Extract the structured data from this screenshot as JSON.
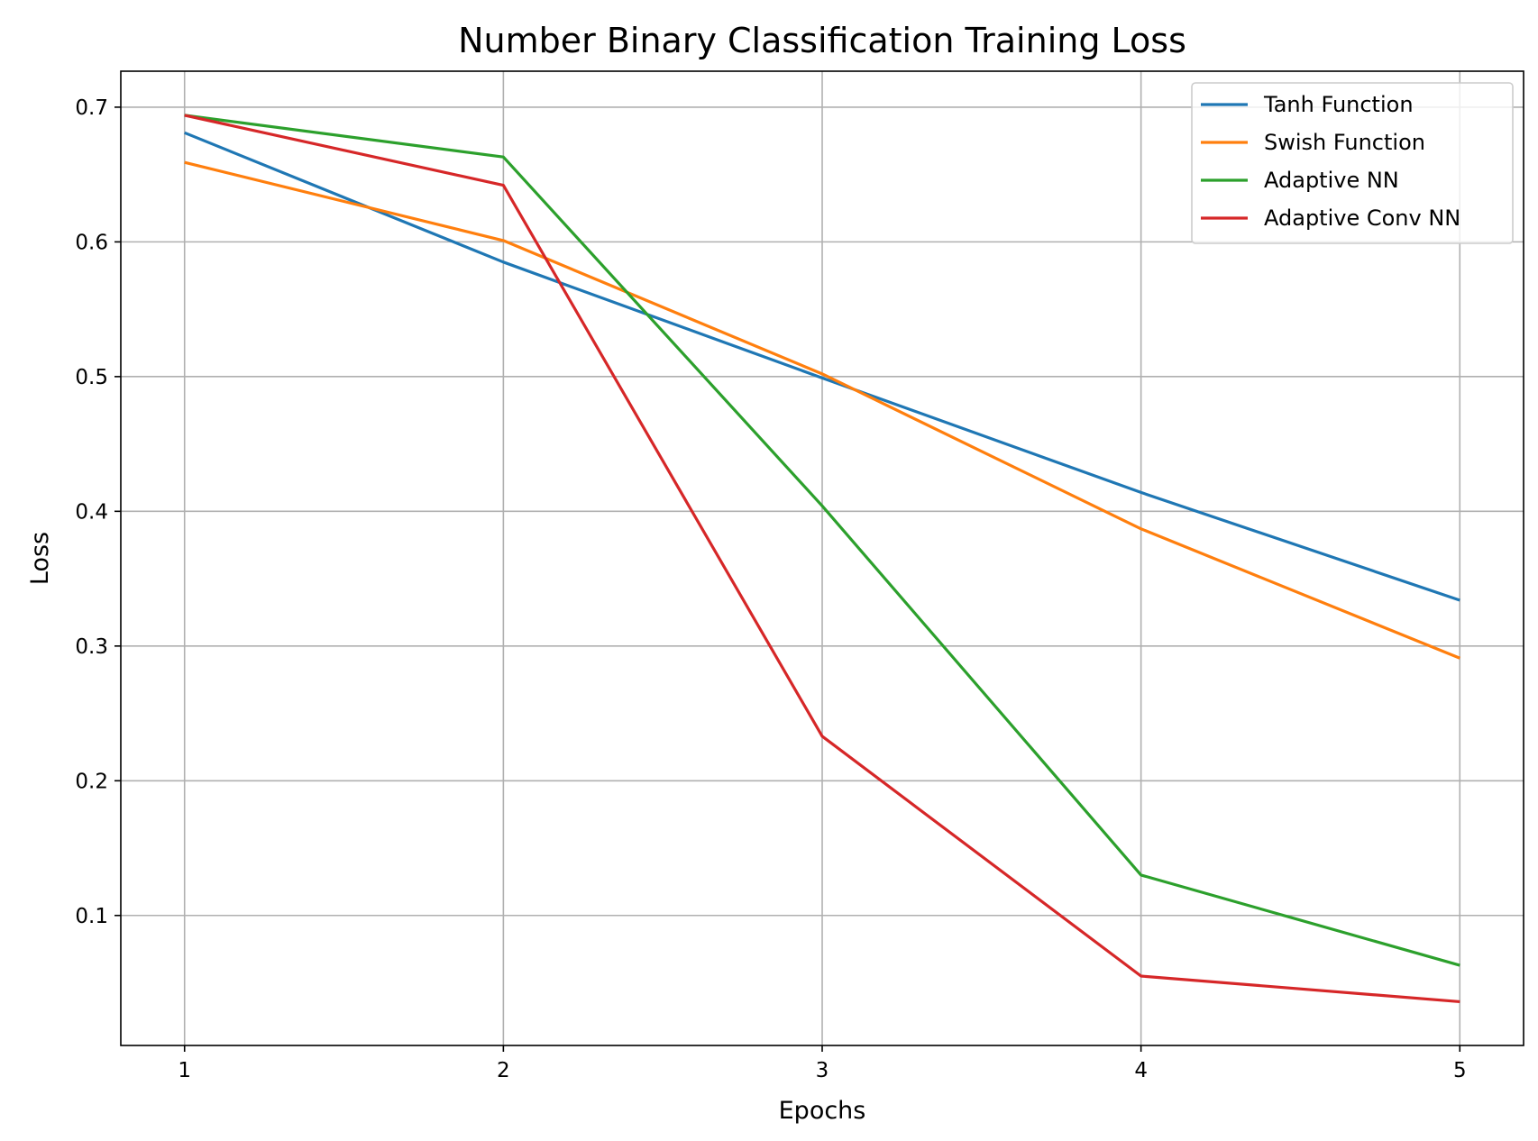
{
  "chart_data": {
    "type": "line",
    "title": "Number Binary Classification Training Loss",
    "xlabel": "Epochs",
    "ylabel": "Loss",
    "x": [
      1,
      2,
      3,
      4,
      5
    ],
    "x_ticks": [
      "1",
      "2",
      "3",
      "4",
      "5"
    ],
    "y_ticks": [
      "0.1",
      "0.2",
      "0.3",
      "0.4",
      "0.5",
      "0.6",
      "0.7"
    ],
    "xlim": [
      0.8,
      5.2
    ],
    "ylim": [
      0.0035,
      0.7267
    ],
    "grid": true,
    "legend_position": "upper right",
    "series": [
      {
        "name": "Tanh Function",
        "color": "#1f77b4",
        "values": [
          0.681,
          0.585,
          0.499,
          0.414,
          0.334
        ]
      },
      {
        "name": "Swish Function",
        "color": "#ff7f0e",
        "values": [
          0.659,
          0.601,
          0.502,
          0.387,
          0.291
        ]
      },
      {
        "name": "Adaptive NN",
        "color": "#2ca02c",
        "values": [
          0.694,
          0.663,
          0.404,
          0.13,
          0.063
        ]
      },
      {
        "name": "Adaptive Conv NN",
        "color": "#d62728",
        "values": [
          0.694,
          0.642,
          0.233,
          0.055,
          0.036
        ]
      }
    ]
  }
}
